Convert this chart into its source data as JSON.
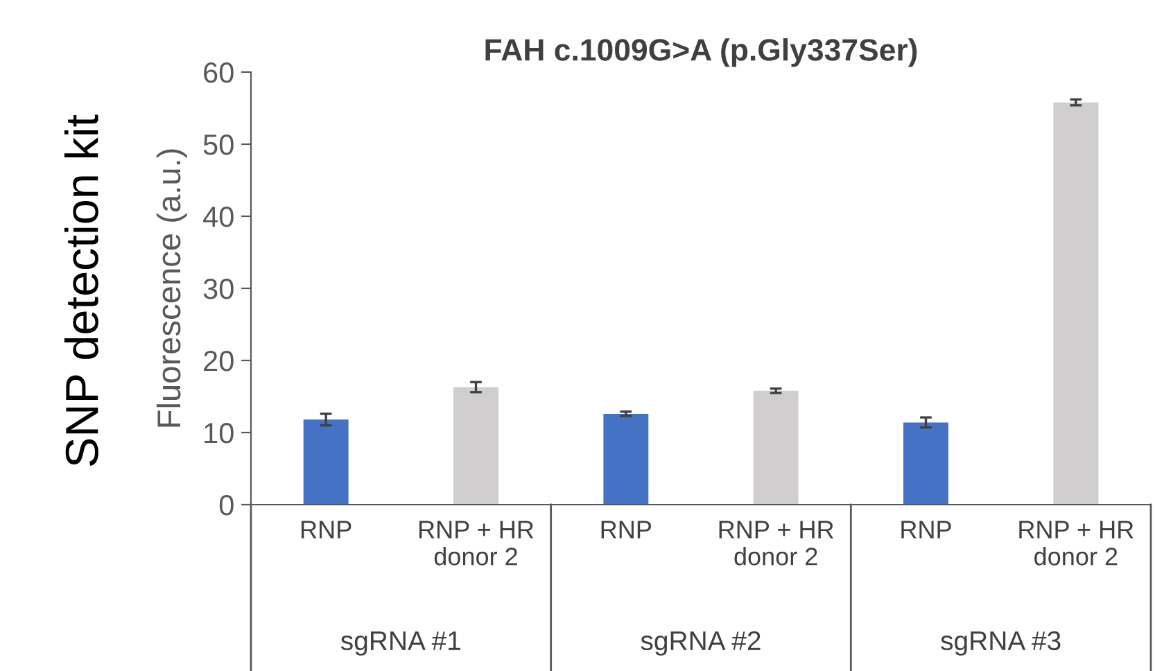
{
  "chart_data": {
    "type": "bar",
    "title": "FAH c.1009G>A (p.Gly337Ser)",
    "ylabel": "Fluorescence (a.u.)",
    "categories": [
      "RNP",
      "RNP + HR\ndonor 2",
      "RNP",
      "RNP + HR\ndonor 2",
      "RNP",
      "RNP + HR\ndonor 2"
    ],
    "values": [
      11.8,
      16.3,
      12.6,
      15.8,
      11.4,
      55.8
    ],
    "errors": [
      0.8,
      0.7,
      0.3,
      0.3,
      0.7,
      0.4
    ],
    "colors": [
      "#4472c4",
      "#d0cece",
      "#4472c4",
      "#d0cece",
      "#4472c4",
      "#d0cece"
    ],
    "ylim": [
      0,
      60
    ],
    "yticks": [
      0,
      10,
      20,
      30,
      40,
      50,
      60
    ],
    "grid": false,
    "annotations": [
      "SNP detection kit",
      "sgRNA #1",
      "sgRNA #2",
      "sgRNA #3"
    ]
  }
}
